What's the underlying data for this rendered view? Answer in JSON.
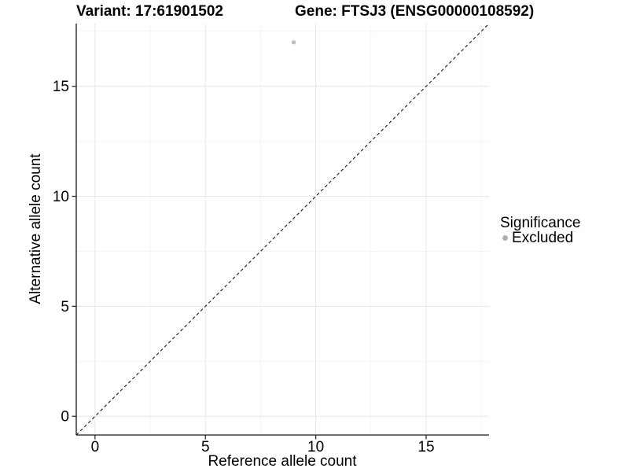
{
  "chart_data": {
    "type": "scatter",
    "title_left": "Variant: 17:61901502",
    "title_right": "Gene: FTSJ3 (ENSG00000108592)",
    "xlabel": "Reference allele count",
    "ylabel": "Alternative allele count",
    "xlim": [
      -0.85,
      17.85
    ],
    "ylim": [
      -0.85,
      17.85
    ],
    "x_ticks": [
      0,
      5,
      10,
      15
    ],
    "y_ticks": [
      0,
      5,
      10,
      15
    ],
    "x_minor_grid": [
      2.5,
      7.5,
      12.5,
      17.5
    ],
    "y_minor_grid": [
      2.5,
      7.5,
      12.5,
      17.5
    ],
    "grid": "major+minor",
    "series": [
      {
        "name": "Excluded",
        "marker": "circle",
        "color": "#bdbdbd",
        "points": [
          {
            "x": 9,
            "y": 17
          }
        ]
      }
    ],
    "reference_line": {
      "kind": "identity",
      "equation": "y = x",
      "style": "dashed",
      "color": "#1a1a1a"
    },
    "legend": {
      "title": "Significance",
      "position": "right",
      "items": [
        {
          "label": "Excluded",
          "marker": "circle",
          "color": "#b0b0b0"
        }
      ]
    }
  },
  "style_colors": {
    "background": "#ffffff",
    "grid_major": "#e8e8e8",
    "grid_minor": "#f4f4f4",
    "axis_line": "#404040",
    "tick_mark": "#2b2b2b",
    "text": "#000000"
  }
}
